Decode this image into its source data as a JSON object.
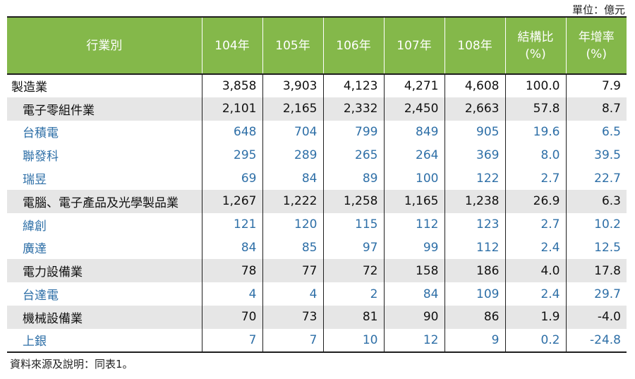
{
  "unit_label": "單位：億元",
  "header": {
    "industry": "行業別",
    "years": [
      "104年",
      "105年",
      "106年",
      "107年",
      "108年"
    ],
    "share_line1": "結構比",
    "share_line2": "(%)",
    "growth_line1": "年增率",
    "growth_line2": "(%)"
  },
  "rows": [
    {
      "kind": "total",
      "name": "製造業",
      "values": [
        "3,858",
        "3,903",
        "4,123",
        "4,271",
        "4,608",
        "100.0",
        "7.9"
      ]
    },
    {
      "kind": "sector",
      "name": "電子零組件業",
      "values": [
        "2,101",
        "2,165",
        "2,332",
        "2,450",
        "2,663",
        "57.8",
        "8.7"
      ]
    },
    {
      "kind": "company",
      "name": "台積電",
      "values": [
        "648",
        "704",
        "799",
        "849",
        "905",
        "19.6",
        "6.5"
      ]
    },
    {
      "kind": "company",
      "name": "聯發科",
      "values": [
        "295",
        "289",
        "265",
        "264",
        "369",
        "8.0",
        "39.5"
      ]
    },
    {
      "kind": "company",
      "name": "瑞昱",
      "values": [
        "69",
        "84",
        "89",
        "100",
        "122",
        "2.7",
        "22.7"
      ]
    },
    {
      "kind": "sector",
      "name": "電腦、電子產品及光學製品業",
      "values": [
        "1,267",
        "1,222",
        "1,258",
        "1,165",
        "1,238",
        "26.9",
        "6.3"
      ]
    },
    {
      "kind": "company",
      "name": "緯創",
      "values": [
        "121",
        "120",
        "115",
        "112",
        "123",
        "2.7",
        "10.2"
      ]
    },
    {
      "kind": "company",
      "name": "廣達",
      "values": [
        "84",
        "85",
        "97",
        "99",
        "112",
        "2.4",
        "12.5"
      ]
    },
    {
      "kind": "sector",
      "name": "電力設備業",
      "values": [
        "78",
        "77",
        "72",
        "158",
        "186",
        "4.0",
        "17.8"
      ]
    },
    {
      "kind": "company",
      "name": "台達電",
      "values": [
        "4",
        "4",
        "2",
        "84",
        "109",
        "2.4",
        "29.7"
      ]
    },
    {
      "kind": "sector",
      "name": "機械設備業",
      "values": [
        "70",
        "73",
        "81",
        "90",
        "86",
        "1.9",
        "-4.0"
      ]
    },
    {
      "kind": "company",
      "name": "上銀",
      "values": [
        "7",
        "7",
        "10",
        "12",
        "9",
        "0.2",
        "-24.8"
      ]
    }
  ],
  "note": "資料來源及說明：同表1。",
  "colors": {
    "header_bg": "#84b84a",
    "sector_bg": "#e6e6e6",
    "company_text": "#2e6fa7"
  }
}
